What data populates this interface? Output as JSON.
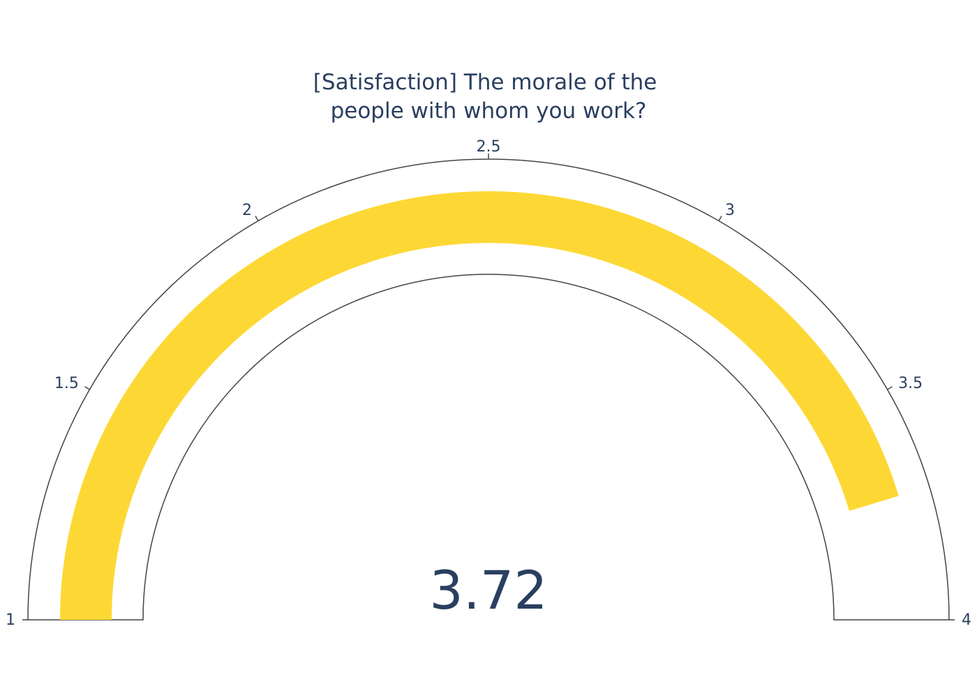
{
  "chart_data": {
    "type": "gauge",
    "title": "[Satisfaction] The morale of the people with whom you work?",
    "title_lines": [
      "[Satisfaction] The morale of the",
      "people with whom you work?"
    ],
    "value": 3.72,
    "value_label": "3.72",
    "range": [
      1,
      4
    ],
    "ticks": [
      {
        "value": 1,
        "label": "1"
      },
      {
        "value": 1.5,
        "label": "1.5"
      },
      {
        "value": 2,
        "label": "2"
      },
      {
        "value": 2.5,
        "label": "2.5"
      },
      {
        "value": 3,
        "label": "3"
      },
      {
        "value": 3.5,
        "label": "3.5"
      },
      {
        "value": 4,
        "label": "4"
      }
    ],
    "bar_color": "#fdd835",
    "outline_color": "#444444",
    "text_color": "#2a3f5f"
  }
}
